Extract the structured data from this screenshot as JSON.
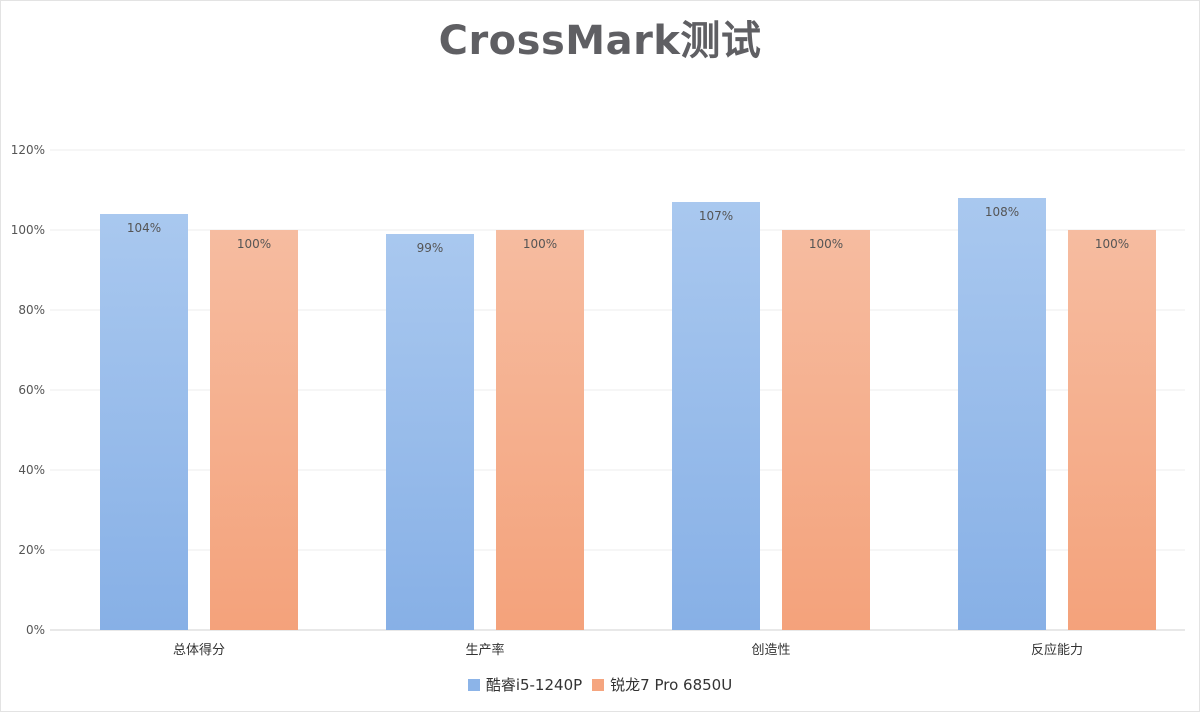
{
  "chart_data": {
    "type": "bar",
    "title": "CrossMark测试",
    "categories": [
      "总体得分",
      "生产率",
      "创造性",
      "反应能力"
    ],
    "series": [
      {
        "name": "酷睿i5-1240P",
        "values": [
          104,
          99,
          107,
          108
        ],
        "labels": [
          "104%",
          "99%",
          "107%",
          "108%"
        ],
        "color": "#8cb4e8"
      },
      {
        "name": "锐龙7 Pro 6850U",
        "values": [
          100,
          100,
          100,
          100
        ],
        "labels": [
          "100%",
          "100%",
          "100%",
          "100%"
        ],
        "color": "#f5a57f"
      }
    ],
    "ylim": [
      0,
      120
    ],
    "yticks": [
      0,
      20,
      40,
      60,
      80,
      100,
      120
    ],
    "ytick_labels": [
      "0%",
      "20%",
      "40%",
      "60%",
      "80%",
      "100%",
      "120%"
    ],
    "grid": true,
    "legend_position": "bottom"
  }
}
